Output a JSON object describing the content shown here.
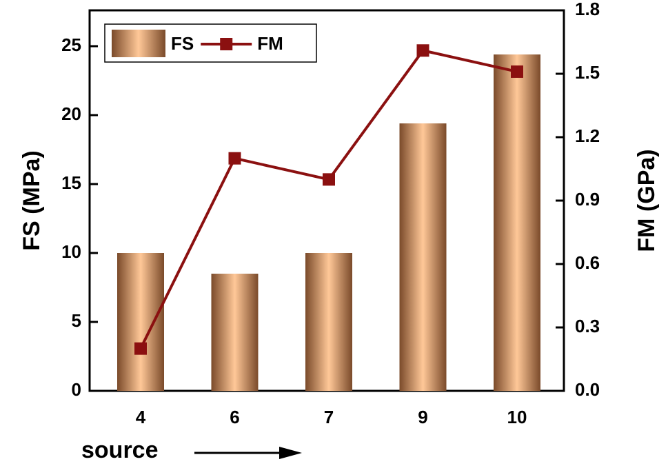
{
  "chart_data": {
    "type": "bar_line",
    "categories": [
      "4",
      "6",
      "7",
      "9",
      "10"
    ],
    "x_label": "source",
    "y_label": "FS (MPa)",
    "y2_label": "FM (GPa)",
    "ylim": [
      0,
      27.6
    ],
    "yticks": [
      0,
      5,
      10,
      15,
      20,
      25
    ],
    "y2lim": [
      0,
      1.8
    ],
    "y2ticks": [
      {
        "value": 0,
        "label": "0.0"
      },
      0.3,
      0.6,
      0.9,
      1.2,
      1.5,
      1.8
    ],
    "legend": "top-left",
    "series": [
      {
        "name": "FS",
        "type": "bar",
        "color": "#a0704a",
        "values": [
          10,
          8.5,
          10,
          19.4,
          24.4
        ]
      },
      {
        "name": "FM",
        "type": "line",
        "axis": "y2",
        "color": "#8b1010",
        "values": [
          0.2,
          1.1,
          1.0,
          1.61,
          1.51
        ]
      }
    ]
  }
}
